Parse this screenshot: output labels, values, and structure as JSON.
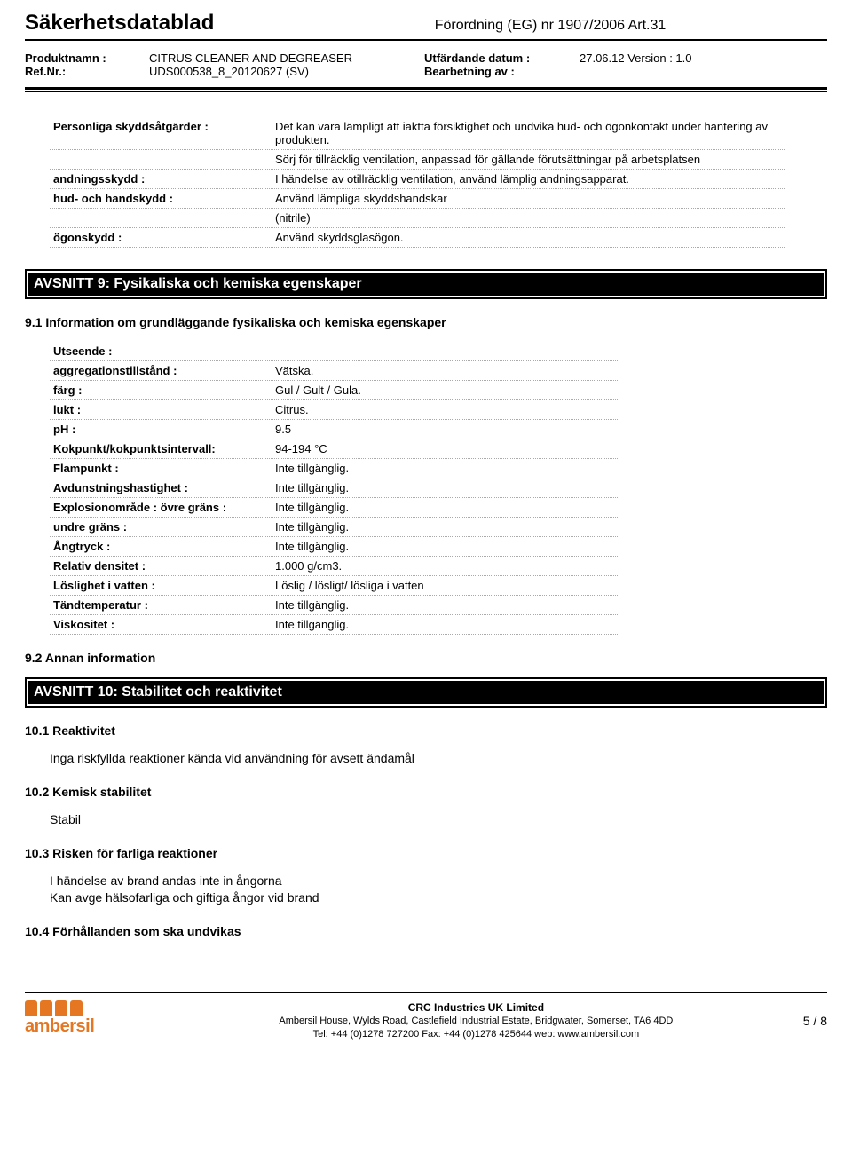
{
  "header": {
    "title": "Säkerhetsdatablad",
    "regulation": "Förordning (EG) nr 1907/2006 Art.31",
    "product_label": "Produktnamn :",
    "ref_label": "Ref.Nr.:",
    "product_name": "CITRUS CLEANER AND DEGREASER",
    "ref_value": "UDS000538_8_20120627 (SV)",
    "issue_label": "Utfärdande datum :",
    "processed_label": "Bearbetning av :",
    "issue_value": "27.06.12 Version : 1.0",
    "processed_value": ""
  },
  "protection": {
    "rows": [
      {
        "k": "Personliga skyddsåtgärder :",
        "v": "Det kan vara lämpligt att iaktta försiktighet och undvika hud- och ögonkontakt under hantering av produkten."
      },
      {
        "k": "",
        "v": "Sörj för tillräcklig ventilation, anpassad för gällande förutsättningar på arbetsplatsen"
      },
      {
        "k": "andningsskydd :",
        "v": "I händelse av otillräcklig ventilation, använd lämplig andningsapparat."
      },
      {
        "k": "hud- och handskydd :",
        "v": "Använd lämpliga skyddshandskar"
      },
      {
        "k": "",
        "v": "(nitrile)"
      },
      {
        "k": "ögonskydd :",
        "v": "Använd skyddsglasögon."
      }
    ]
  },
  "section9": {
    "title": "AVSNITT 9: Fysikaliska och kemiska egenskaper",
    "sub1": "9.1 Information om grundläggande fysikaliska och kemiska egenskaper",
    "rows": [
      {
        "k": "Utseende :",
        "v": ""
      },
      {
        "k": "aggregationstillstånd :",
        "v": "Vätska."
      },
      {
        "k": "färg :",
        "v": "Gul / Gult / Gula."
      },
      {
        "k": "lukt :",
        "v": "Citrus."
      },
      {
        "k": "pH :",
        "v": "9.5"
      },
      {
        "k": "Kokpunkt/kokpunktsintervall:",
        "v": "94-194 °C"
      },
      {
        "k": "Flampunkt :",
        "v": "Inte tillgänglig."
      },
      {
        "k": "Avdunstningshastighet :",
        "v": "Inte tillgänglig."
      },
      {
        "k": "Explosionområde : övre gräns :",
        "v": "Inte tillgänglig."
      },
      {
        "k": "undre gräns :",
        "v": "Inte tillgänglig."
      },
      {
        "k": "Ångtryck :",
        "v": "Inte tillgänglig."
      },
      {
        "k": "Relativ densitet :",
        "v": "1.000 g/cm3."
      },
      {
        "k": "Löslighet i vatten :",
        "v": "Löslig / lösligt/ lösliga i vatten"
      },
      {
        "k": "Tändtemperatur :",
        "v": "Inte tillgänglig."
      },
      {
        "k": "Viskositet :",
        "v": "Inte tillgänglig."
      }
    ],
    "sub2": "9.2 Annan information"
  },
  "section10": {
    "title": "AVSNITT 10: Stabilitet och reaktivitet",
    "sub1": "10.1 Reaktivitet",
    "text1": "Inga riskfyllda reaktioner kända vid användning för avsett ändamål",
    "sub2": "10.2 Kemisk stabilitet",
    "text2": "Stabil",
    "sub3": "10.3 Risken för farliga reaktioner",
    "text3a": "I händelse av brand andas inte in ångorna",
    "text3b": "Kan avge hälsofarliga och giftiga ångor vid brand",
    "sub4": "10.4 Förhållanden som ska undvikas"
  },
  "footer": {
    "logo_text": "ambersil",
    "company": "CRC Industries UK Limited",
    "address": "Ambersil House, Wylds Road, Castlefield Industrial Estate, Bridgwater, Somerset, TA6 4DD",
    "contact": "Tel: +44 (0)1278 727200 Fax: +44 (0)1278 425644 web: www.ambersil.com",
    "page": "5 / 8"
  }
}
